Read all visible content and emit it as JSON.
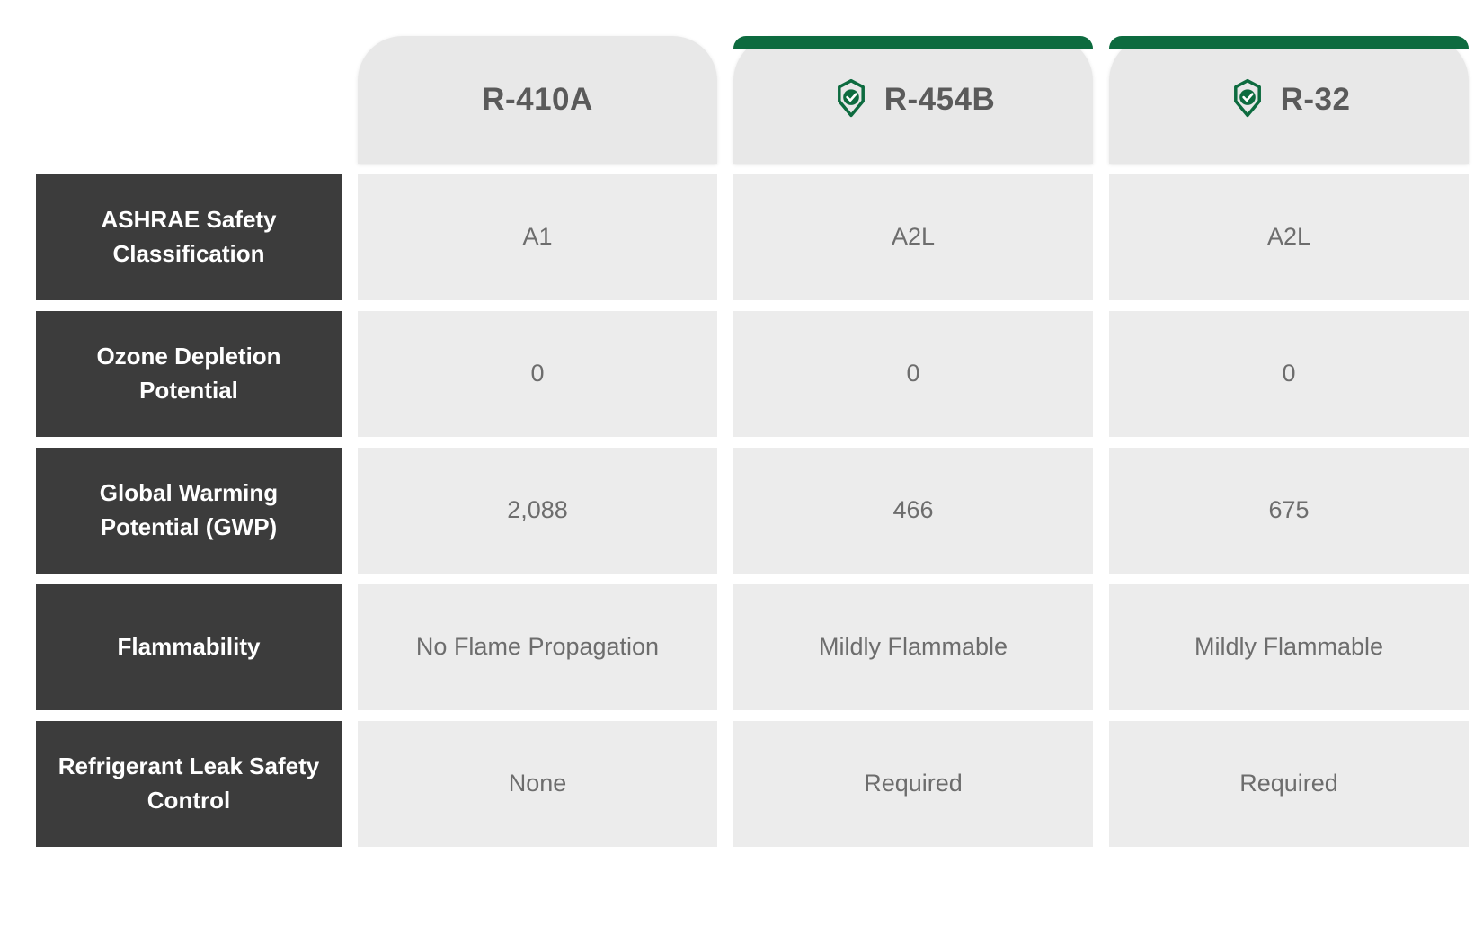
{
  "colors": {
    "header_bg": "#e8e8e8",
    "header_text": "#5a5a5a",
    "accent_green": "#0d6b3f",
    "label_bg": "#3c3c3c",
    "label_text": "#ffffff",
    "data_bg": "#ececec",
    "data_text": "#6d6d6d",
    "badge_green": "#0d6b3f"
  },
  "columns": [
    {
      "title": "R-410A",
      "has_badge": false,
      "has_accent": false
    },
    {
      "title": "R-454B",
      "has_badge": true,
      "has_accent": true
    },
    {
      "title": "R-32",
      "has_badge": true,
      "has_accent": true
    }
  ],
  "rows": [
    {
      "label": "ASHRAE Safety Classification",
      "values": [
        "A1",
        "A2L",
        "A2L"
      ]
    },
    {
      "label": "Ozone Depletion Potential",
      "values": [
        "0",
        "0",
        "0"
      ]
    },
    {
      "label": "Global Warming Potential (GWP)",
      "values": [
        "2,088",
        "466",
        "675"
      ]
    },
    {
      "label": "Flammability",
      "values": [
        "No Flame Propagation",
        "Mildly Flammable",
        "Mildly Flammable"
      ]
    },
    {
      "label": "Refrigerant Leak Safety Control",
      "values": [
        "None",
        "Required",
        "Required"
      ]
    }
  ]
}
